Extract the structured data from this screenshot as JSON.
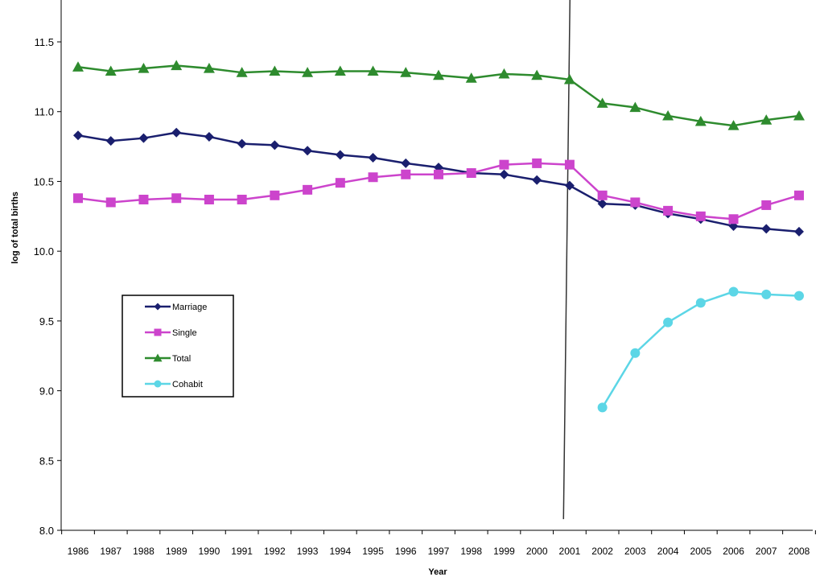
{
  "chart_data": {
    "type": "line",
    "title": "",
    "xlabel": "Year",
    "ylabel": "log of total births",
    "ylim": [
      8.0,
      11.8
    ],
    "yticks": [
      "8.0",
      "8.5",
      "9.0",
      "9.5",
      "10.0",
      "10.5",
      "11.0",
      "11.5"
    ],
    "categories": [
      "1986",
      "1987",
      "1988",
      "1989",
      "1990",
      "1991",
      "1992",
      "1993",
      "1994",
      "1995",
      "1996",
      "1997",
      "1998",
      "1999",
      "2000",
      "2001",
      "2002",
      "2003",
      "2004",
      "2005",
      "2006",
      "2007",
      "2008"
    ],
    "grid": false,
    "legend_position": "middle-left",
    "reference_line": {
      "x_between": [
        "2001",
        "2002"
      ],
      "ylim": [
        8.08,
        11.8
      ]
    },
    "series": [
      {
        "name": "Marriage",
        "color": "#1a1f6e",
        "marker": "diamond",
        "values": [
          10.83,
          10.79,
          10.81,
          10.85,
          10.82,
          10.77,
          10.76,
          10.72,
          10.69,
          10.67,
          10.63,
          10.6,
          10.56,
          10.55,
          10.51,
          10.47,
          10.34,
          10.33,
          10.27,
          10.23,
          10.18,
          10.16,
          10.14
        ]
      },
      {
        "name": "Single",
        "color": "#cc44cc",
        "marker": "square",
        "values": [
          10.38,
          10.35,
          10.37,
          10.38,
          10.37,
          10.37,
          10.4,
          10.44,
          10.49,
          10.53,
          10.55,
          10.55,
          10.56,
          10.62,
          10.63,
          10.62,
          10.4,
          10.35,
          10.29,
          10.25,
          10.23,
          10.33,
          10.4
        ]
      },
      {
        "name": "Total",
        "color": "#2e8b2e",
        "marker": "triangle",
        "values": [
          11.32,
          11.29,
          11.31,
          11.33,
          11.31,
          11.28,
          11.29,
          11.28,
          11.29,
          11.29,
          11.28,
          11.26,
          11.24,
          11.27,
          11.26,
          11.23,
          11.06,
          11.03,
          10.97,
          10.93,
          10.9,
          10.94,
          10.97
        ]
      },
      {
        "name": "Cohabit",
        "color": "#5cd6e6",
        "marker": "circle",
        "values": [
          null,
          null,
          null,
          null,
          null,
          null,
          null,
          null,
          null,
          null,
          null,
          null,
          null,
          null,
          null,
          null,
          8.88,
          9.27,
          9.49,
          9.63,
          9.71,
          9.69,
          9.68
        ]
      }
    ]
  }
}
